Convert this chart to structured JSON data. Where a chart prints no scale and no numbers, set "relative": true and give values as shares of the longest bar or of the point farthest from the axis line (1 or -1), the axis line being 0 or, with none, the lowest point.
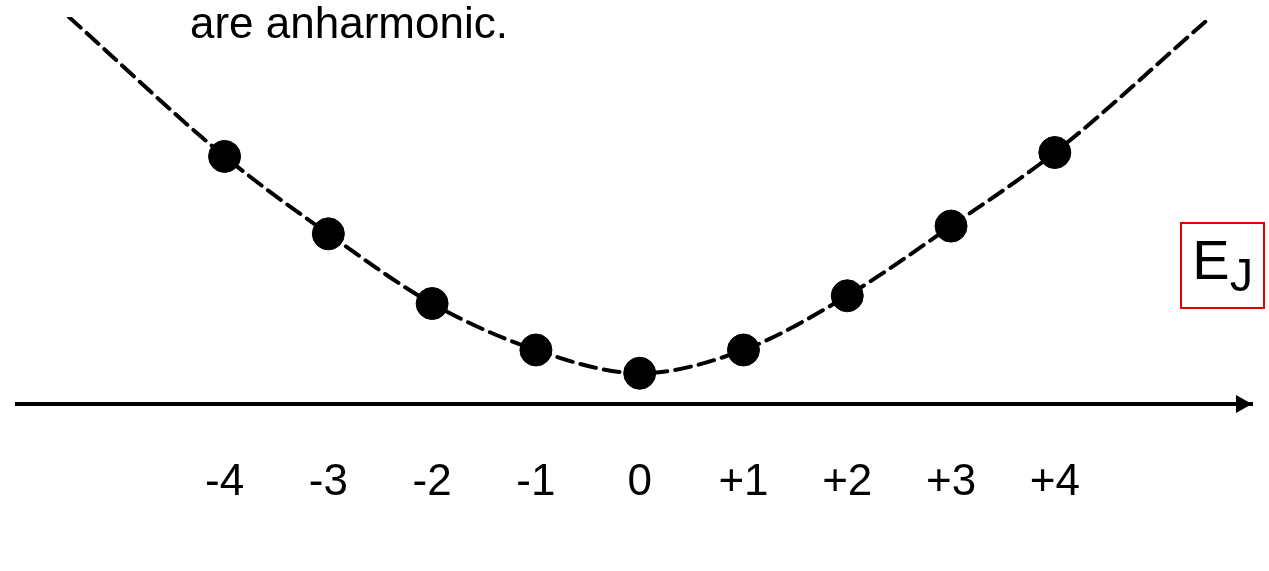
{
  "chart_data": {
    "type": "scatter",
    "relative": true,
    "x": [
      -4,
      -3,
      -2,
      -1,
      0,
      1,
      2,
      3,
      4
    ],
    "series": [
      {
        "color": "#000000",
        "marker": "circle",
        "values": [
          0.64,
          0.44,
          0.26,
          0.14,
          0.08,
          0.14,
          0.28,
          0.46,
          0.65
        ]
      },
      {
        "type": "line",
        "color": "#000000",
        "line_style": "dashed",
        "marker": "none",
        "x": [
          -5.5,
          -4,
          -3,
          -2,
          -1,
          0,
          1,
          2,
          3,
          4,
          5.46
        ],
        "values": [
          1.0,
          0.64,
          0.44,
          0.26,
          0.14,
          0.08,
          0.14,
          0.28,
          0.46,
          0.65,
          0.99
        ]
      }
    ],
    "xlim": [
      -6,
      5.9
    ],
    "xticks": [
      -4,
      -3,
      -2,
      -1,
      0,
      {
        "value": 1,
        "label": "+1"
      },
      {
        "value": 2,
        "label": "+2"
      },
      {
        "value": 3,
        "label": "+3"
      },
      {
        "value": 4,
        "label": "+4"
      }
    ],
    "grid": false,
    "legend": false,
    "annotations": [
      "are anharmonic.",
      "E$_{J}$"
    ]
  }
}
